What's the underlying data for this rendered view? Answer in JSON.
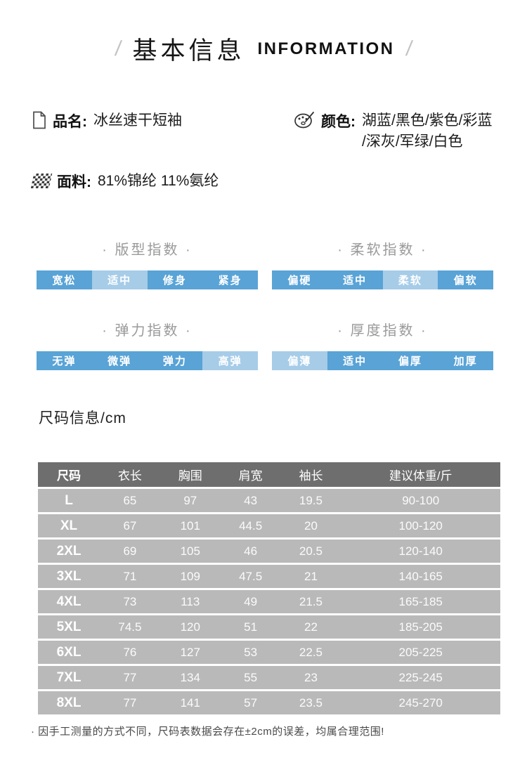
{
  "header": {
    "left_slash": "/",
    "title_cn": "基本信息",
    "title_en": "INFORMATION",
    "right_slash": "/"
  },
  "product": {
    "name_label": "品名:",
    "name_value": "冰丝速干短袖",
    "fabric_label": "面料:",
    "fabric_value": "81%锦纶 11%氨纶",
    "color_label": "颜色:",
    "color_value_line1": "湖蓝/黑色/紫色/彩蓝",
    "color_value_line2": "/深灰/军绿/白色"
  },
  "indexes": [
    {
      "title": "· 版型指数 ·",
      "options": [
        "宽松",
        "适中",
        "修身",
        "紧身"
      ],
      "selected": 1
    },
    {
      "title": "· 柔软指数 ·",
      "options": [
        "偏硬",
        "适中",
        "柔软",
        "偏软"
      ],
      "selected": 2
    },
    {
      "title": "· 弹力指数 ·",
      "options": [
        "无弹",
        "微弹",
        "弹力",
        "高弹"
      ],
      "selected": 3
    },
    {
      "title": "· 厚度指数 ·",
      "options": [
        "偏薄",
        "适中",
        "偏厚",
        "加厚"
      ],
      "selected": 0
    }
  ],
  "size_section": {
    "heading": "尺码信息/cm"
  },
  "size_table": {
    "columns": [
      "尺码",
      "衣长",
      "胸围",
      "肩宽",
      "袖长",
      "建议体重/斤"
    ],
    "rows": [
      [
        "L",
        "65",
        "97",
        "43",
        "19.5",
        "90-100"
      ],
      [
        "XL",
        "67",
        "101",
        "44.5",
        "20",
        "100-120"
      ],
      [
        "2XL",
        "69",
        "105",
        "46",
        "20.5",
        "120-140"
      ],
      [
        "3XL",
        "71",
        "109",
        "47.5",
        "21",
        "140-165"
      ],
      [
        "4XL",
        "73",
        "113",
        "49",
        "21.5",
        "165-185"
      ],
      [
        "5XL",
        "74.5",
        "120",
        "51",
        "22",
        "185-205"
      ],
      [
        "6XL",
        "76",
        "127",
        "53",
        "22.5",
        "205-225"
      ],
      [
        "7XL",
        "77",
        "134",
        "55",
        "23",
        "225-245"
      ],
      [
        "8XL",
        "77",
        "141",
        "57",
        "23.5",
        "245-270"
      ]
    ]
  },
  "footnote": "· 因手工测量的方式不同，尺码表数据会存在±2cm的误差，均属合理范围!",
  "colors": {
    "bar_base": "#59a3d6",
    "bar_highlight": "#a6cce8",
    "table_header_bg": "#6e6e6e",
    "table_row_bg": "#b9b9b9"
  }
}
